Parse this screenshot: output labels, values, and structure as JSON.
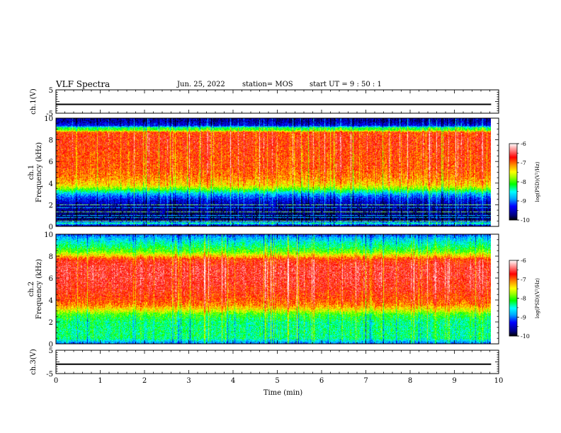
{
  "header": {
    "title": "VLF Spectra",
    "date": "Jun. 25, 2022",
    "station": "station= MOS",
    "start": "start  UT =   9 : 50 : 1"
  },
  "chart_data": [
    {
      "type": "line",
      "panel": "ch1-voltage",
      "ylabel": "ch.1(V)",
      "ylim": [
        -5,
        5
      ],
      "yticks": [
        "5",
        "-5"
      ],
      "xlim": [
        0,
        10
      ],
      "series": [
        {
          "x": [
            0,
            9.83
          ],
          "y": [
            -1.2,
            -1.2
          ]
        }
      ]
    },
    {
      "type": "heatmap",
      "panel": "ch1-spectrogram",
      "ylabel": "ch.1",
      "ylabel2": "Frequency (kHz)",
      "ylim": [
        0,
        10
      ],
      "yticks": [
        "0",
        "2",
        "4",
        "6",
        "8",
        "10"
      ],
      "xlim": [
        0,
        10
      ],
      "data_xmax": 9.83,
      "colorbar": {
        "label": "log(PSD)(V²/Hz)",
        "range": [
          -10,
          -6
        ],
        "ticks": [
          "-6",
          "-7",
          "-8",
          "-9",
          "-10"
        ]
      },
      "profile": [
        [
          0.0,
          -10
        ],
        [
          0.3,
          -8.3
        ],
        [
          0.5,
          -9.8
        ],
        [
          1.0,
          -9.8
        ],
        [
          1.5,
          -9.7
        ],
        [
          2.0,
          -9.6
        ],
        [
          2.5,
          -9.3
        ],
        [
          3.0,
          -8.8
        ],
        [
          3.4,
          -8.0
        ],
        [
          3.8,
          -7.4
        ],
        [
          4.5,
          -7.1
        ],
        [
          5.5,
          -6.9
        ],
        [
          6.5,
          -6.9
        ],
        [
          7.5,
          -6.8
        ],
        [
          8.2,
          -6.8
        ],
        [
          8.7,
          -6.9
        ],
        [
          8.9,
          -8.0
        ],
        [
          9.1,
          -8.1
        ],
        [
          9.3,
          -9.3
        ],
        [
          9.7,
          -9.6
        ],
        [
          10.0,
          -9.6
        ]
      ]
    },
    {
      "type": "heatmap",
      "panel": "ch2-spectrogram",
      "ylabel": "ch.2",
      "ylabel2": "Frequency (kHz)",
      "ylim": [
        0,
        10
      ],
      "yticks": [
        "0",
        "2",
        "4",
        "6",
        "8",
        "10"
      ],
      "xlim": [
        0,
        10
      ],
      "data_xmax": 9.83,
      "colorbar": {
        "label": "log(PSD)(V²/Hz)",
        "range": [
          -10,
          -6
        ],
        "ticks": [
          "-6",
          "-7",
          "-8",
          "-9",
          "-10"
        ]
      },
      "profile": [
        [
          0.0,
          -9.0
        ],
        [
          0.5,
          -8.3
        ],
        [
          1.0,
          -8.3
        ],
        [
          2.0,
          -8.3
        ],
        [
          2.7,
          -8.0
        ],
        [
          3.0,
          -7.6
        ],
        [
          3.5,
          -7.1
        ],
        [
          4.0,
          -6.9
        ],
        [
          5.0,
          -6.7
        ],
        [
          6.0,
          -6.6
        ],
        [
          7.0,
          -6.6
        ],
        [
          7.7,
          -6.8
        ],
        [
          8.0,
          -7.3
        ],
        [
          8.4,
          -7.9
        ],
        [
          8.8,
          -8.2
        ],
        [
          9.3,
          -8.5
        ],
        [
          9.7,
          -8.8
        ],
        [
          10.0,
          -9.2
        ]
      ]
    },
    {
      "type": "line",
      "panel": "ch3-voltage",
      "ylabel": "ch.3(V)",
      "ylim": [
        -5,
        5
      ],
      "yticks": [
        "5",
        "-5"
      ],
      "xlim": [
        0,
        10
      ],
      "xlabel": "Time  (min)",
      "xticks": [
        "0",
        "1",
        "2",
        "3",
        "4",
        "5",
        "6",
        "7",
        "8",
        "9",
        "10"
      ],
      "series": [
        {
          "x": [
            0,
            9.83
          ],
          "y": [
            -1.0,
            -1.0
          ]
        }
      ]
    }
  ]
}
